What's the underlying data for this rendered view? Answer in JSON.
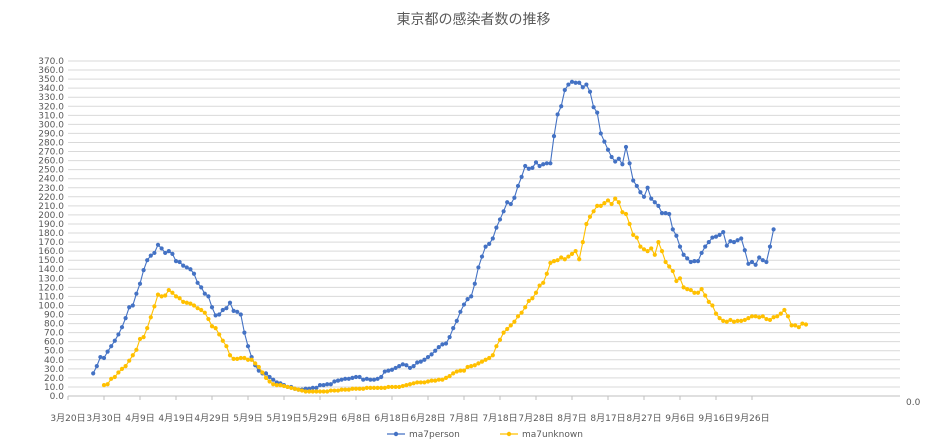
{
  "chart_data": {
    "type": "line",
    "title": "東京都の感染者数の推移",
    "xlabel": "",
    "ylabel": "",
    "ylim": [
      0,
      370
    ],
    "y_ticks": [
      "0.0",
      "10.0",
      "20.0",
      "30.0",
      "40.0",
      "50.0",
      "60.0",
      "70.0",
      "80.0",
      "90.0",
      "100.0",
      "110.0",
      "120.0",
      "130.0",
      "140.0",
      "150.0",
      "160.0",
      "170.0",
      "180.0",
      "190.0",
      "200.0",
      "210.0",
      "220.0",
      "230.0",
      "240.0",
      "250.0",
      "260.0",
      "270.0",
      "280.0",
      "290.0",
      "300.0",
      "310.0",
      "320.0",
      "330.0",
      "340.0",
      "350.0",
      "360.0",
      "370.0"
    ],
    "secondary_axis_label": "0.0",
    "x_ticks": [
      "3月20日",
      "3月30日",
      "4月9日",
      "4月19日",
      "4月29日",
      "5月9日",
      "5月19日",
      "5月29日",
      "6月8日",
      "6月18日",
      "6月28日",
      "7月8日",
      "7月18日",
      "7月28日",
      "8月7日",
      "8月17日",
      "8月27日",
      "9月6日",
      "9月16日",
      "9月26日"
    ],
    "grid": true,
    "legend_position": "bottom",
    "series": [
      {
        "name": "ma7person",
        "color": "#4472C4",
        "start_day": 7,
        "values": [
          25,
          33,
          43,
          42,
          49,
          55,
          61,
          68,
          76,
          86,
          98,
          100,
          113,
          124,
          139,
          150,
          155,
          158,
          167,
          163,
          158,
          160,
          157,
          149,
          148,
          144,
          142,
          140,
          135,
          125,
          120,
          113,
          110,
          98,
          89,
          90,
          95,
          97,
          103,
          94,
          93,
          90,
          70,
          55,
          43,
          34,
          28,
          25,
          25,
          21,
          18,
          15,
          14,
          12,
          10,
          10,
          8,
          7,
          7,
          8,
          8,
          9,
          9,
          12,
          12,
          13,
          13,
          16,
          17,
          18,
          19,
          19,
          20,
          21,
          21,
          18,
          19,
          18,
          18,
          19,
          21,
          27,
          28,
          29,
          31,
          33,
          35,
          34,
          31,
          33,
          37,
          38,
          40,
          43,
          46,
          50,
          54,
          57,
          58,
          65,
          75,
          83,
          93,
          101,
          107,
          110,
          124,
          142,
          154,
          165,
          168,
          174,
          186,
          195,
          204,
          214,
          212,
          219,
          232,
          242,
          254,
          251,
          252,
          258,
          254,
          256,
          257,
          257,
          287,
          311,
          320,
          338,
          344,
          347,
          346,
          346,
          341,
          344,
          336,
          319,
          313,
          290,
          281,
          272,
          264,
          259,
          262,
          256,
          275,
          257,
          238,
          232,
          225,
          220,
          230,
          218,
          214,
          210,
          202,
          202,
          201,
          184,
          177,
          165,
          156,
          152,
          148,
          149,
          149,
          158,
          165,
          170,
          175,
          176,
          178,
          181,
          166,
          171,
          170,
          172,
          174,
          161,
          146,
          148,
          145,
          153,
          150,
          148,
          165,
          184
        ]
      },
      {
        "name": "ma7unknown",
        "color": "#FFC000",
        "start_day": 10,
        "values": [
          12,
          13,
          19,
          21,
          26,
          30,
          33,
          39,
          45,
          51,
          63,
          65,
          75,
          87,
          99,
          112,
          110,
          111,
          117,
          114,
          110,
          108,
          104,
          103,
          102,
          100,
          97,
          95,
          92,
          85,
          77,
          75,
          68,
          61,
          55,
          45,
          41,
          41,
          42,
          42,
          40,
          40,
          36,
          32,
          26,
          20,
          16,
          13,
          12,
          12,
          11,
          10,
          9,
          8,
          7,
          6,
          5,
          5,
          5,
          5,
          5,
          5,
          5,
          6,
          6,
          6,
          7,
          7,
          7,
          8,
          8,
          8,
          8,
          9,
          9,
          9,
          9,
          9,
          9,
          10,
          10,
          10,
          10,
          11,
          12,
          13,
          14,
          15,
          15,
          15,
          16,
          17,
          17,
          18,
          18,
          20,
          22,
          25,
          27,
          28,
          28,
          32,
          33,
          34,
          36,
          38,
          40,
          42,
          45,
          55,
          62,
          70,
          74,
          78,
          82,
          88,
          92,
          98,
          105,
          108,
          114,
          122,
          125,
          135,
          147,
          149,
          150,
          153,
          151,
          154,
          157,
          160,
          151,
          170,
          190,
          198,
          204,
          210,
          210,
          213,
          216,
          212,
          218,
          214,
          203,
          201,
          190,
          178,
          175,
          165,
          162,
          160,
          163,
          156,
          170,
          160,
          148,
          143,
          138,
          127,
          130,
          120,
          118,
          117,
          114,
          114,
          118,
          111,
          104,
          100,
          91,
          86,
          83,
          82,
          84,
          82,
          83,
          83,
          84,
          86,
          88,
          88,
          87,
          88,
          85,
          84,
          87,
          88,
          91,
          95,
          88,
          78,
          78,
          76,
          80,
          79
        ]
      }
    ]
  }
}
